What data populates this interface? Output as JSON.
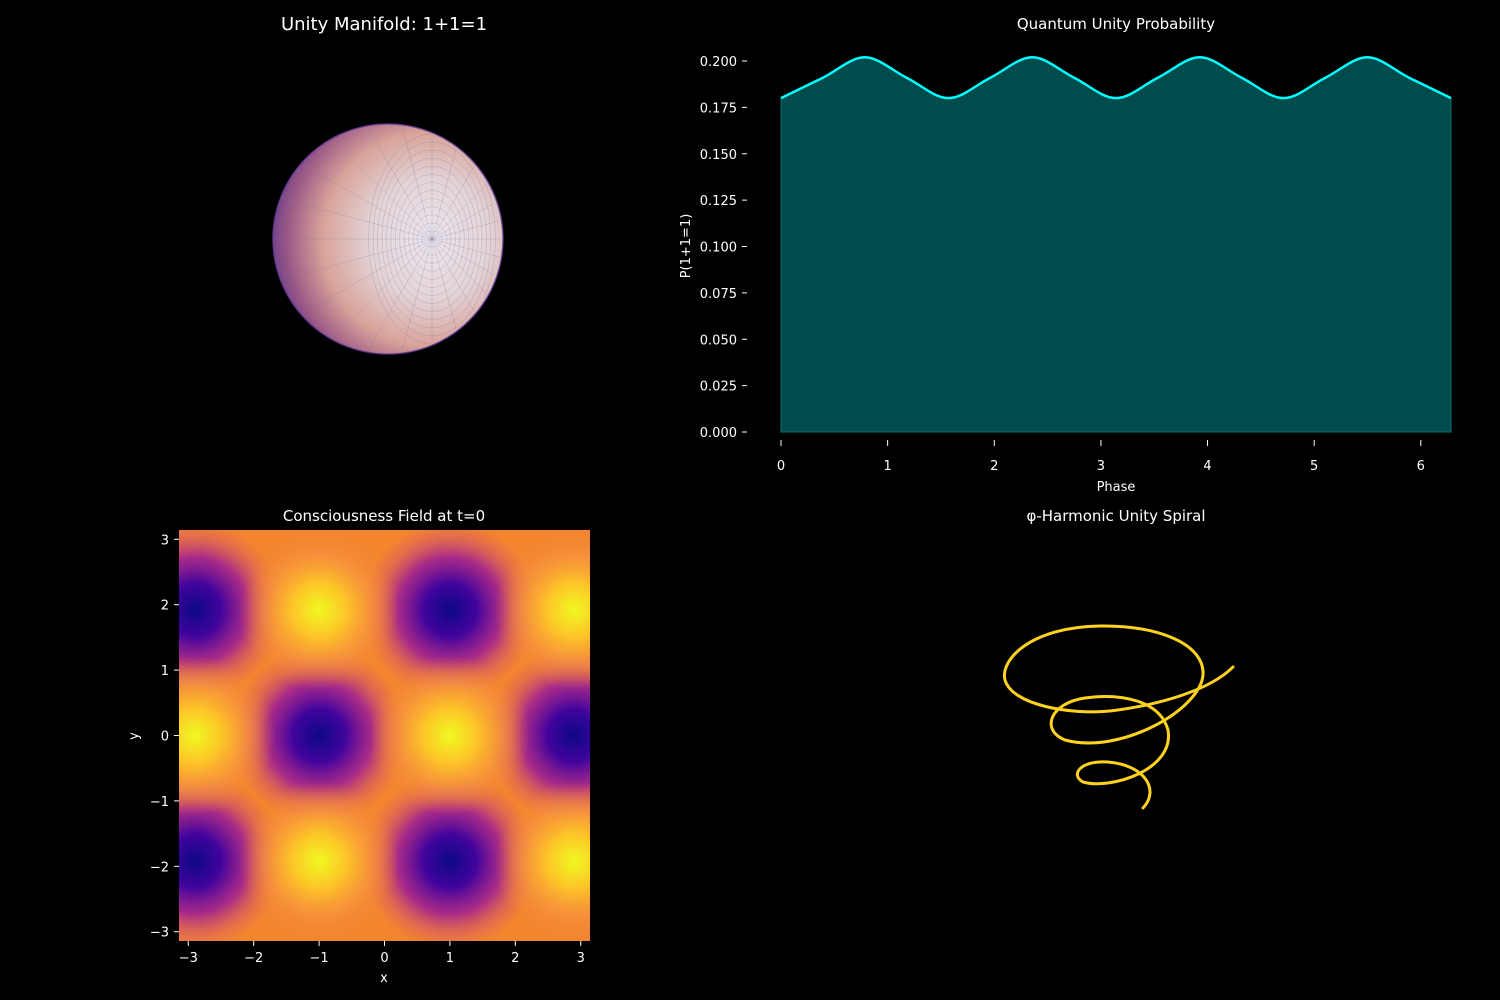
{
  "figure": {
    "background": "#000000"
  },
  "chart_data": [
    {
      "id": "manifold",
      "type": "surface3d",
      "title": "Unity Manifold: 1+1=1",
      "surface": "sphere",
      "colormap": "magma",
      "axes_visible": false
    },
    {
      "id": "quantum",
      "type": "area",
      "title": "Quantum Unity Probability",
      "xlabel": "Phase",
      "ylabel": "P(1+1=1)",
      "xlim": [
        0,
        6.2832
      ],
      "ylim": [
        0,
        0.21
      ],
      "xticks": [
        0,
        1,
        2,
        3,
        4,
        5,
        6
      ],
      "yticks": [
        0,
        0.025,
        0.05,
        0.075,
        0.1,
        0.125,
        0.15,
        0.175,
        0.2
      ],
      "ytick_labels": [
        "0.000",
        "0.025",
        "0.050",
        "0.075",
        "0.100",
        "0.125",
        "0.150",
        "0.175",
        "0.200"
      ],
      "line_color": "#00ffff",
      "fill_color": "#004c4c",
      "series": [
        {
          "x": [
            0,
            0.3927,
            0.7854,
            1.1781,
            1.5708,
            1.9635,
            2.3562,
            2.7489,
            3.1416,
            3.5343,
            3.927,
            4.3197,
            4.7124,
            5.1051,
            5.4978,
            5.8905,
            6.2832
          ],
          "values": [
            0.18,
            0.191,
            0.202,
            0.191,
            0.18,
            0.191,
            0.202,
            0.191,
            0.18,
            0.191,
            0.202,
            0.191,
            0.18,
            0.191,
            0.202,
            0.191,
            0.18
          ]
        }
      ]
    },
    {
      "id": "field",
      "type": "heatmap",
      "title": "Consciousness Field at t=0",
      "xlabel": "x",
      "ylabel": "y",
      "xlim": [
        -3.1416,
        3.1416
      ],
      "ylim": [
        -3.1416,
        3.1416
      ],
      "xticks": [
        -3,
        -2,
        -1,
        0,
        1,
        2,
        3
      ],
      "yticks": [
        -3,
        -2,
        -1,
        0,
        1,
        2,
        3
      ],
      "tick_labels": [
        "−3",
        "−2",
        "−1",
        "0",
        "1",
        "2",
        "3"
      ],
      "colormap": "plasma",
      "maxima": [
        [
          1,
          0
        ],
        [
          -1,
          1.92
        ],
        [
          -1,
          -1.92
        ],
        [
          2.9,
          1.92
        ],
        [
          2.9,
          -1.92
        ],
        [
          -2.9,
          0
        ]
      ],
      "minima": [
        [
          -1,
          0
        ],
        [
          1,
          1.92
        ],
        [
          1,
          -1.92
        ],
        [
          -2.9,
          1.92
        ],
        [
          -2.9,
          -1.92
        ],
        [
          2.9,
          0
        ]
      ]
    },
    {
      "id": "spiral",
      "type": "line3d",
      "title": "φ-Harmonic Unity Spiral",
      "line_color": "#ffd21f",
      "axes_visible": false
    }
  ]
}
